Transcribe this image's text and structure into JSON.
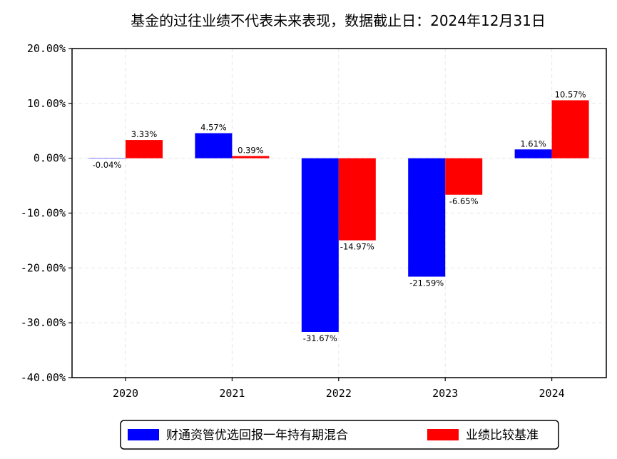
{
  "chart_data": {
    "type": "bar",
    "title": "基金的过往业绩不代表未来表现，数据截止日：2024年12月31日",
    "categories": [
      "2020",
      "2021",
      "2022",
      "2023",
      "2024"
    ],
    "series": [
      {
        "name": "财通资管优选回报一年持有期混合",
        "color": "#0000ff",
        "values": [
          -0.04,
          4.57,
          -31.67,
          -21.59,
          1.61
        ],
        "labels": [
          "-0.04%",
          "4.57%",
          "-31.67%",
          "-21.59%",
          "1.61%"
        ]
      },
      {
        "name": "业绩比较基准",
        "color": "#ff0000",
        "values": [
          3.33,
          0.39,
          -14.97,
          -6.65,
          10.57
        ],
        "labels": [
          "3.33%",
          "0.39%",
          "-14.97%",
          "-6.65%",
          "10.57%"
        ]
      }
    ],
    "ylim": [
      -40,
      20
    ],
    "yticks": [
      20,
      10,
      0,
      -10,
      -20,
      -30,
      -40
    ],
    "ytick_labels": [
      "20.00%",
      "10.00%",
      "0.00%",
      "-10.00%",
      "-20.00%",
      "-30.00%",
      "-40.00%"
    ],
    "xlabel": "",
    "ylabel": "",
    "grid": true,
    "legend_position": "bottom-center"
  }
}
